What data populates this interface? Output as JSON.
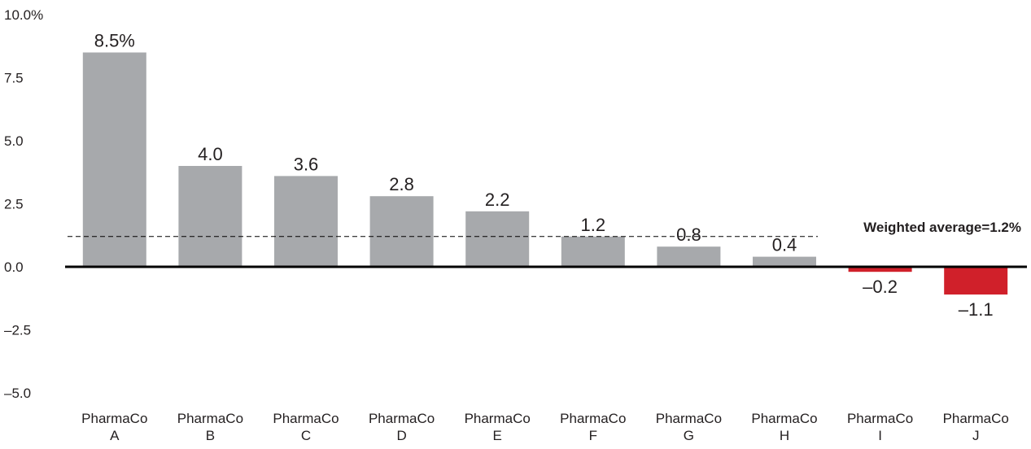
{
  "chart_data": {
    "type": "bar",
    "categories": [
      [
        "PharmaCo",
        "A"
      ],
      [
        "PharmaCo",
        "B"
      ],
      [
        "PharmaCo",
        "C"
      ],
      [
        "PharmaCo",
        "D"
      ],
      [
        "PharmaCo",
        "E"
      ],
      [
        "PharmaCo",
        "F"
      ],
      [
        "PharmaCo",
        "G"
      ],
      [
        "PharmaCo",
        "H"
      ],
      [
        "PharmaCo",
        "I"
      ],
      [
        "PharmaCo",
        "J"
      ]
    ],
    "values": [
      8.5,
      4.0,
      3.6,
      2.8,
      2.2,
      1.2,
      0.8,
      0.4,
      -0.2,
      -1.1
    ],
    "value_labels": [
      "8.5%",
      "4.0",
      "3.6",
      "2.8",
      "2.2",
      "1.2",
      "0.8",
      "0.4",
      "–0.2",
      "–1.1"
    ],
    "ylim": [
      -5.0,
      10.0
    ],
    "yticks": [
      10.0,
      7.5,
      5.0,
      2.5,
      0.0,
      -2.5,
      -5.0
    ],
    "ytick_labels": [
      "10.0%",
      "7.5",
      "5.0",
      "2.5",
      "0.0",
      "–2.5",
      "–5.0"
    ],
    "reference_line": {
      "value": 1.2,
      "label": "Weighted average=1.2%",
      "style": "dashed"
    },
    "colors": {
      "positive": "#a7a9ac",
      "negative": "#d0202a",
      "axis": "#000000",
      "text": "#231f20"
    },
    "grid": false,
    "legend": "none"
  }
}
